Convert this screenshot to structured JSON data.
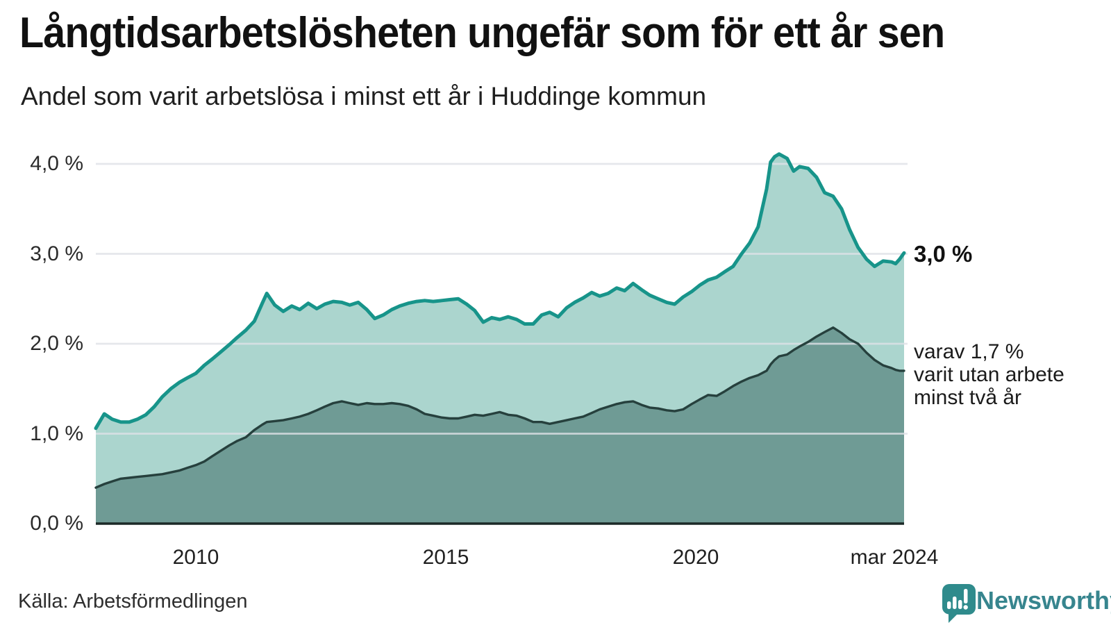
{
  "header": {
    "title": "Långtidsarbetslösheten ungefär som för ett år sen",
    "subtitle": "Andel som varit arbetslösa i minst ett år i Huddinge kommun"
  },
  "annotations": {
    "primary_end_label": "3,0 %",
    "secondary_note": "varav 1,7 %\nvarit utan arbete\nminst två år"
  },
  "source": {
    "label": "Källa: Arbetsförmedlingen"
  },
  "branding": {
    "name": "Newsworthy",
    "logo_icon": "speech-bubble-bar-chart-icon",
    "color": "#37858e"
  },
  "colors": {
    "background": "#ffffff",
    "primary_line": "#17948a",
    "primary_fill": "#abd5ce",
    "secondary_line": "#26403d",
    "secondary_fill": "#6f9b95",
    "gridline": "#dfe2e7",
    "axis_line": "#1c2927",
    "text": "#1a1a1a"
  },
  "chart_data": {
    "type": "area",
    "title": "Långtidsarbetslösheten ungefär som för ett år sen",
    "subtitle": "Andel som varit arbetslösa i minst ett år i Huddinge kommun",
    "unit": "%",
    "x_range": [
      2008.0,
      2024.17
    ],
    "ylim": [
      0,
      4.3
    ],
    "grid": true,
    "legend_position": "direct-labels-right",
    "y_ticks": [
      {
        "value": 4.0,
        "label": "4,0 %"
      },
      {
        "value": 3.0,
        "label": "3,0 %"
      },
      {
        "value": 2.0,
        "label": "2,0 %"
      },
      {
        "value": 1.0,
        "label": "1,0 %"
      },
      {
        "value": 0.0,
        "label": "0,0 %"
      }
    ],
    "x_ticks": [
      {
        "year": 2010,
        "label": "2010"
      },
      {
        "year": 2015,
        "label": "2015"
      },
      {
        "year": 2020,
        "label": "2020"
      },
      {
        "year": 2023.97,
        "label": "mar 2024"
      }
    ],
    "x": [
      2008.0,
      2008.17,
      2008.33,
      2008.5,
      2008.67,
      2008.83,
      2009.0,
      2009.17,
      2009.33,
      2009.5,
      2009.67,
      2009.83,
      2010.0,
      2010.17,
      2010.33,
      2010.5,
      2010.67,
      2010.83,
      2011.0,
      2011.17,
      2011.33,
      2011.42,
      2011.58,
      2011.75,
      2011.92,
      2012.08,
      2012.25,
      2012.42,
      2012.58,
      2012.75,
      2012.92,
      2013.08,
      2013.25,
      2013.42,
      2013.58,
      2013.75,
      2013.92,
      2014.08,
      2014.25,
      2014.42,
      2014.58,
      2014.75,
      2014.92,
      2015.08,
      2015.25,
      2015.42,
      2015.58,
      2015.75,
      2015.92,
      2016.08,
      2016.25,
      2016.42,
      2016.58,
      2016.75,
      2016.92,
      2017.08,
      2017.25,
      2017.42,
      2017.58,
      2017.75,
      2017.92,
      2018.08,
      2018.25,
      2018.42,
      2018.58,
      2018.75,
      2018.92,
      2019.08,
      2019.25,
      2019.42,
      2019.58,
      2019.75,
      2019.92,
      2020.08,
      2020.25,
      2020.42,
      2020.58,
      2020.75,
      2020.92,
      2021.08,
      2021.25,
      2021.42,
      2021.5,
      2021.58,
      2021.67,
      2021.83,
      2021.96,
      2022.08,
      2022.25,
      2022.42,
      2022.58,
      2022.75,
      2022.92,
      2023.08,
      2023.25,
      2023.42,
      2023.58,
      2023.75,
      2023.92,
      2024.0,
      2024.08,
      2024.17
    ],
    "series": [
      {
        "name": "Andel arbetslösa minst ett år",
        "end_value": 3.0,
        "end_label": "3,0 %",
        "line_color": "#17948a",
        "fill_color": "#abd5ce",
        "values": [
          1.06,
          1.22,
          1.16,
          1.13,
          1.13,
          1.16,
          1.21,
          1.3,
          1.41,
          1.5,
          1.57,
          1.62,
          1.67,
          1.76,
          1.83,
          1.91,
          1.99,
          2.07,
          2.15,
          2.25,
          2.45,
          2.56,
          2.43,
          2.36,
          2.42,
          2.38,
          2.45,
          2.39,
          2.44,
          2.47,
          2.46,
          2.43,
          2.46,
          2.38,
          2.28,
          2.32,
          2.38,
          2.42,
          2.45,
          2.47,
          2.48,
          2.47,
          2.48,
          2.49,
          2.5,
          2.44,
          2.37,
          2.24,
          2.29,
          2.27,
          2.3,
          2.27,
          2.22,
          2.22,
          2.32,
          2.35,
          2.3,
          2.4,
          2.46,
          2.51,
          2.57,
          2.53,
          2.56,
          2.62,
          2.59,
          2.67,
          2.6,
          2.54,
          2.5,
          2.46,
          2.44,
          2.52,
          2.58,
          2.65,
          2.71,
          2.74,
          2.8,
          2.86,
          3.0,
          3.12,
          3.3,
          3.72,
          4.02,
          4.08,
          4.11,
          4.06,
          3.92,
          3.97,
          3.95,
          3.85,
          3.68,
          3.64,
          3.5,
          3.27,
          3.07,
          2.94,
          2.86,
          2.92,
          2.91,
          2.89,
          2.94,
          3.01
        ]
      },
      {
        "name": "Varav utan arbete minst två år",
        "end_value": 1.7,
        "end_label": "1,7 %",
        "line_color": "#26403d",
        "fill_color": "#6f9b95",
        "values": [
          0.4,
          0.44,
          0.47,
          0.5,
          0.51,
          0.52,
          0.53,
          0.54,
          0.55,
          0.57,
          0.59,
          0.62,
          0.65,
          0.69,
          0.75,
          0.81,
          0.87,
          0.92,
          0.96,
          1.04,
          1.1,
          1.13,
          1.14,
          1.15,
          1.17,
          1.19,
          1.22,
          1.26,
          1.3,
          1.34,
          1.36,
          1.34,
          1.32,
          1.34,
          1.33,
          1.33,
          1.34,
          1.33,
          1.31,
          1.27,
          1.22,
          1.2,
          1.18,
          1.17,
          1.17,
          1.19,
          1.21,
          1.2,
          1.22,
          1.24,
          1.21,
          1.2,
          1.17,
          1.13,
          1.13,
          1.11,
          1.13,
          1.15,
          1.17,
          1.19,
          1.23,
          1.27,
          1.3,
          1.33,
          1.35,
          1.36,
          1.32,
          1.29,
          1.28,
          1.26,
          1.25,
          1.27,
          1.33,
          1.38,
          1.43,
          1.42,
          1.47,
          1.53,
          1.58,
          1.62,
          1.65,
          1.7,
          1.77,
          1.82,
          1.86,
          1.88,
          1.93,
          1.97,
          2.02,
          2.08,
          2.13,
          2.18,
          2.12,
          2.05,
          2.0,
          1.9,
          1.82,
          1.76,
          1.73,
          1.71,
          1.7,
          1.7
        ]
      }
    ]
  }
}
